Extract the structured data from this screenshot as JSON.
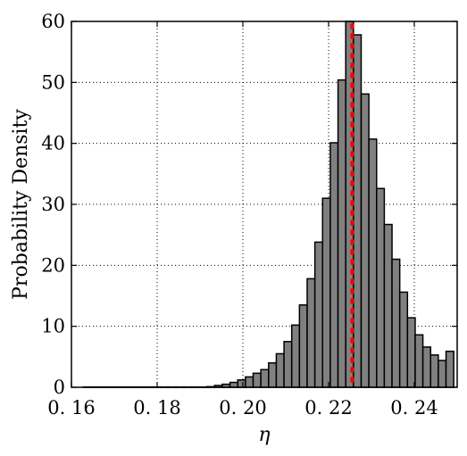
{
  "chart_data": {
    "type": "bar",
    "title": "",
    "xlabel": "η",
    "ylabel": "Probability Density",
    "xlim": [
      0.16,
      0.25
    ],
    "ylim": [
      0,
      60
    ],
    "x_ticks": [
      0.16,
      0.18,
      0.2,
      0.22,
      0.24
    ],
    "x_tick_labels": [
      "0. 16",
      "0. 18",
      "0. 20",
      "0. 22",
      "0. 24"
    ],
    "y_ticks": [
      0,
      10,
      20,
      30,
      40,
      50,
      60
    ],
    "y_tick_labels": [
      "0",
      "10",
      "20",
      "30",
      "40",
      "50",
      "60"
    ],
    "grid": true,
    "bin_width": 0.0018,
    "bin_edges": [
      0.1628,
      0.1646,
      0.1664,
      0.1682,
      0.17,
      0.1718,
      0.1736,
      0.1754,
      0.1772,
      0.179,
      0.1808,
      0.1826,
      0.1844,
      0.1862,
      0.188,
      0.1898,
      0.1916,
      0.1934,
      0.1952,
      0.197,
      0.1988,
      0.2006,
      0.2024,
      0.2042,
      0.206,
      0.2078,
      0.2096,
      0.2114,
      0.2132,
      0.215,
      0.2168,
      0.2186,
      0.2204,
      0.2222,
      0.224,
      0.2258,
      0.2276,
      0.2294,
      0.2312,
      0.233,
      0.2348,
      0.2366,
      0.2384,
      0.2402,
      0.242,
      0.2438,
      0.2456,
      0.2474,
      0.2492
    ],
    "values": [
      0.05,
      0.05,
      0.05,
      0.05,
      0.05,
      0.05,
      0.05,
      0.05,
      0.05,
      0.05,
      0.05,
      0.05,
      0.05,
      0.05,
      0.05,
      0.05,
      0.1,
      0.3,
      0.5,
      0.8,
      1.2,
      1.7,
      2.3,
      2.9,
      4.0,
      5.5,
      7.5,
      10.2,
      13.5,
      17.8,
      23.8,
      31.0,
      40.1,
      50.4,
      60.0,
      57.8,
      48.1,
      40.7,
      32.6,
      26.7,
      21.0,
      15.6,
      11.4,
      8.6,
      6.6,
      5.3,
      4.4,
      5.9
    ],
    "bar_color": "#808080",
    "edge_color": "#000000",
    "reference_line": {
      "x": 0.2255,
      "color": "#ff0000",
      "style": "dotted"
    }
  }
}
